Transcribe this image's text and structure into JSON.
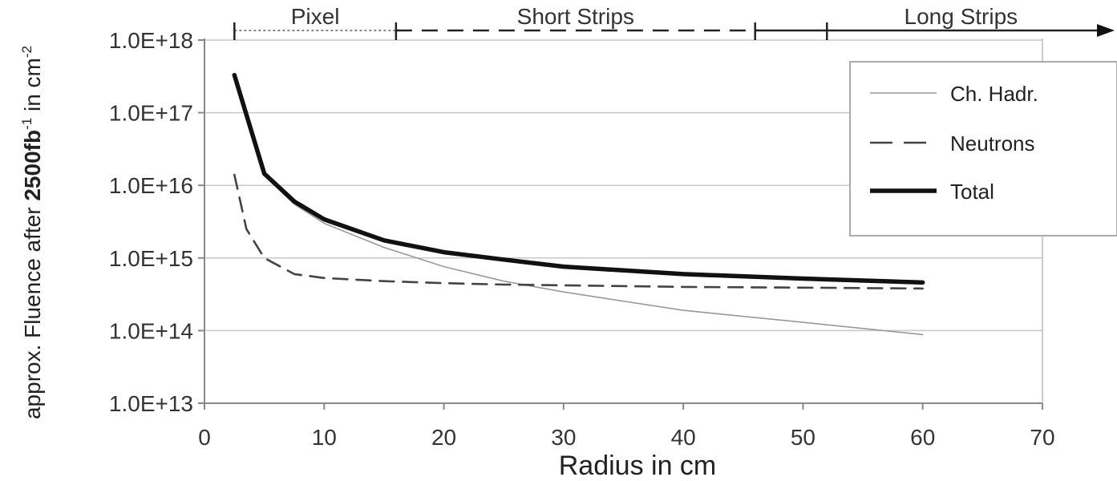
{
  "chart_data": {
    "type": "line",
    "xlabel": "Radius in cm",
    "ylabel_prefix": "approx. Fluence after ",
    "ylabel_bold": "2500fb",
    "ylabel_bold_sup": "-1",
    "ylabel_suffix": " in cm",
    "ylabel_suffix_sup": "-2",
    "xlim": [
      0,
      70
    ],
    "x_ticks": [
      0,
      10,
      20,
      30,
      40,
      50,
      60,
      70
    ],
    "x_tick_labels": [
      "0",
      "10",
      "20",
      "30",
      "40",
      "50",
      "60",
      "70"
    ],
    "y_scale": "log",
    "ylim": [
      10000000000000.0,
      1e+18
    ],
    "y_ticks": [
      10000000000000.0,
      100000000000000.0,
      1000000000000000.0,
      1e+16,
      1e+17,
      1e+18
    ],
    "y_tick_labels": [
      "1.0E+13",
      "1.0E+14",
      "1.0E+15",
      "1.0E+16",
      "1.0E+17",
      "1.0E+18"
    ],
    "grid": "horizontal",
    "legend_position": "top-right",
    "series": [
      {
        "name": "Ch. Hadr.",
        "style": "thin",
        "color": "#999999",
        "x": [
          2.5,
          5,
          7.5,
          10,
          15,
          20,
          25,
          30,
          40,
          50,
          60
        ],
        "y": [
          3.2e+17,
          1.4e+16,
          5500000000000000.0,
          3000000000000000.0,
          1400000000000000.0,
          760000000000000.0,
          480000000000000.0,
          340000000000000.0,
          190000000000000.0,
          130000000000000.0,
          88000000000000.0
        ]
      },
      {
        "name": "Neutrons",
        "style": "dashed",
        "color": "#444444",
        "x": [
          2.5,
          3.5,
          5,
          7.5,
          10,
          15,
          20,
          25,
          30,
          40,
          50,
          60
        ],
        "y": [
          1.4e+16,
          2500000000000000.0,
          1000000000000000.0,
          600000000000000.0,
          530000000000000.0,
          480000000000000.0,
          450000000000000.0,
          430000000000000.0,
          420000000000000.0,
          400000000000000.0,
          390000000000000.0,
          380000000000000.0
        ]
      },
      {
        "name": "Total",
        "style": "thick",
        "color": "#111111",
        "x": [
          2.5,
          5,
          7.5,
          10,
          15,
          20,
          25,
          30,
          40,
          50,
          60
        ],
        "y": [
          3.3e+17,
          1.45e+16,
          6000000000000000.0,
          3400000000000000.0,
          1750000000000000.0,
          1200000000000000.0,
          950000000000000.0,
          760000000000000.0,
          600000000000000.0,
          520000000000000.0,
          460000000000000.0
        ]
      }
    ],
    "regions": [
      {
        "label": "Pixel",
        "from": 2.5,
        "to": 16,
        "style": "dotted"
      },
      {
        "label": "Short Strips",
        "from": 16,
        "to": 46,
        "style": "dashed"
      },
      {
        "label": "Long Strips",
        "from": 46,
        "to": 70,
        "style": "solid-arrow"
      }
    ],
    "region_ticks": [
      2.5,
      16,
      46,
      52
    ]
  }
}
